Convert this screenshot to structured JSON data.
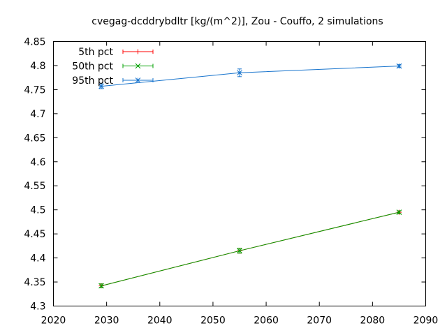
{
  "chart_data": {
    "type": "line",
    "title": "cvegag-dcddrybdltr [kg/(m^2)], Zou - Couffo, 2 simulations",
    "xlabel": "",
    "ylabel": "",
    "xlim": [
      2020,
      2090
    ],
    "ylim": [
      4.3,
      4.85
    ],
    "x_ticks": [
      2020,
      2030,
      2040,
      2050,
      2060,
      2070,
      2080,
      2090
    ],
    "y_ticks": [
      4.3,
      4.35,
      4.4,
      4.45,
      4.5,
      4.55,
      4.6,
      4.65,
      4.7,
      4.75,
      4.8,
      4.85
    ],
    "y_tick_labels": [
      "4.3",
      "4.35",
      "4.4",
      "4.45",
      "4.5",
      "4.55",
      "4.6",
      "4.65",
      "4.7",
      "4.75",
      "4.8",
      "4.85"
    ],
    "grid": false,
    "legend_position": "top-left",
    "series": [
      {
        "name": "5th pct",
        "color": "#ff0000",
        "marker": "plus",
        "x": [
          2029,
          2055,
          2085
        ],
        "y": [
          4.342,
          4.415,
          4.495
        ],
        "err": [
          0.004,
          0.005,
          0.003
        ]
      },
      {
        "name": "50th pct",
        "color": "#00a000",
        "marker": "cross",
        "x": [
          2029,
          2055,
          2085
        ],
        "y": [
          4.342,
          4.415,
          4.495
        ],
        "err": [
          0.004,
          0.005,
          0.003
        ]
      },
      {
        "name": "95th pct",
        "color": "#1874cd",
        "marker": "star",
        "x": [
          2029,
          2055,
          2085
        ],
        "y": [
          4.757,
          4.785,
          4.799
        ],
        "err": [
          0.005,
          0.008,
          0.003
        ]
      }
    ]
  }
}
